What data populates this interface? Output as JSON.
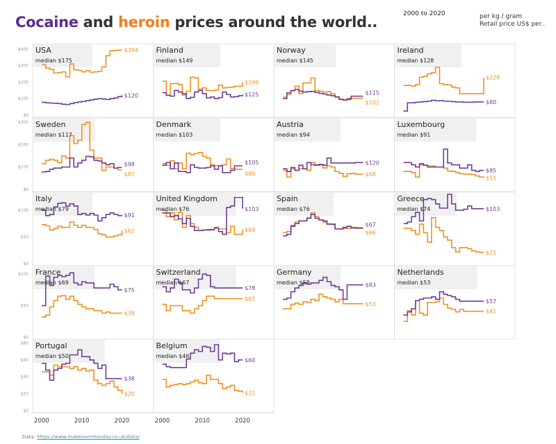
{
  "header": {
    "title_part1": "Cocaine",
    "title_part2": " and ",
    "title_part3": "heroin",
    "title_part4": " prices around the world..",
    "date_range": "2000 to 2020",
    "unit_line1": "per kg / gram",
    "unit_line2": "Retail price US$ per.."
  },
  "footer": {
    "label": "Data: ",
    "link": "https://www.makeovermonday.co.uk/data/"
  },
  "colors": {
    "cocaine": "#6a3d9a",
    "heroin": "#f0901e",
    "panel_header_bg": "#f0f0f0",
    "grid": "#dddddd"
  },
  "chart_data": {
    "type": "line",
    "subtype": "step small multiples",
    "title": "Cocaine and heroin prices around the world..",
    "xlabel": "",
    "ylabel": "Retail price US$",
    "x": [
      2000,
      2001,
      2002,
      2003,
      2004,
      2005,
      2006,
      2007,
      2008,
      2009,
      2010,
      2011,
      2012,
      2013,
      2014,
      2015,
      2016,
      2017,
      2018,
      2019,
      2020
    ],
    "x_ticks": [
      "2000",
      "2010",
      "2020"
    ],
    "legend": [
      {
        "name": "Cocaine",
        "color": "#6a3d9a"
      },
      {
        "name": "Heroin",
        "color": "#f0901e"
      }
    ],
    "rows": [
      {
        "y_ticks": [
          {
            "v": 0,
            "l": "$0"
          },
          {
            "v": 100,
            "l": "$100"
          },
          {
            "v": 200,
            "l": "$200"
          },
          {
            "v": 300,
            "l": "$300"
          },
          {
            "v": 400,
            "l": "$400"
          }
        ],
        "ylim": [
          0,
          420
        ]
      },
      {
        "y_ticks": [
          {
            "v": 0,
            "l": "$0"
          },
          {
            "v": 100,
            "l": "$100"
          },
          {
            "v": 200,
            "l": "$200"
          },
          {
            "v": 300,
            "l": "$300"
          }
        ],
        "ylim": [
          0,
          310
        ]
      },
      {
        "y_ticks": [
          {
            "v": 0,
            "l": "$0"
          },
          {
            "v": 50,
            "l": "$50"
          },
          {
            "v": 100,
            "l": "$100"
          }
        ],
        "ylim": [
          0,
          130
        ]
      },
      {
        "y_ticks": [
          {
            "v": 0,
            "l": "$0"
          },
          {
            "v": 50,
            "l": "$50"
          },
          {
            "v": 100,
            "l": "$100"
          }
        ],
        "ylim": [
          0,
          110
        ]
      },
      {
        "y_ticks": [
          {
            "v": 0,
            "l": "$0"
          },
          {
            "v": 20,
            "l": "$20"
          },
          {
            "v": 40,
            "l": "$40"
          },
          {
            "v": 60,
            "l": "$60"
          },
          {
            "v": 80,
            "l": "$80"
          }
        ],
        "ylim": [
          0,
          82
        ]
      }
    ],
    "panels": [
      {
        "country": "USA",
        "median": "median $175",
        "row": 0,
        "col": 0,
        "cocaine": [
          78,
          75,
          73,
          72,
          70,
          66,
          64,
          70,
          76,
          80,
          83,
          88,
          92,
          97,
          100,
          98,
          95,
          100,
          104,
          112,
          120
        ],
        "cocaine_label": "$120",
        "heroin": [
          305,
          285,
          278,
          255,
          258,
          262,
          232,
          310,
          275,
          272,
          262,
          270,
          260,
          262,
          265,
          292,
          360,
          390,
          392,
          394,
          394
        ],
        "heroin_label": "$394"
      },
      {
        "country": "Finland",
        "median": "median $149",
        "row": 0,
        "col": 1,
        "cocaine": [
          136,
          120,
          115,
          150,
          140,
          130,
          100,
          108,
          140,
          150,
          130,
          104,
          110,
          100,
          106,
          140,
          125,
          110,
          112,
          118,
          125
        ],
        "cocaine_label": "$125",
        "heroin": [
          205,
          120,
          190,
          192,
          185,
          122,
          145,
          230,
          225,
          158,
          165,
          150,
          148,
          152,
          182,
          165,
          168,
          170,
          175,
          175,
          199
        ],
        "heroin_label": "$199"
      },
      {
        "country": "Norway",
        "median": "median $145",
        "row": 0,
        "col": 2,
        "cocaine": [
          100,
          135,
          148,
          155,
          145,
          140,
          142,
          144,
          138,
          132,
          128,
          122,
          118,
          110,
          95,
          92,
          96,
          115,
          115,
          115,
          115
        ],
        "cocaine_label": "$115",
        "heroin": [
          110,
          125,
          150,
          175,
          130,
          195,
          195,
          225,
          150,
          145,
          140,
          142,
          130,
          112,
          98,
          90,
          102,
          102,
          102,
          102,
          102
        ],
        "heroin_label": "$102"
      },
      {
        "country": "Ireland",
        "median": "median $128",
        "row": 0,
        "col": 3,
        "cocaine": [
          25,
          75,
          75,
          78,
          80,
          82,
          85,
          90,
          87,
          88,
          85,
          84,
          82,
          80,
          80,
          78,
          78,
          79,
          80,
          80,
          80
        ],
        "cocaine_label": "$80",
        "heroin": [
          180,
          180,
          176,
          185,
          230,
          235,
          250,
          258,
          290,
          190,
          185,
          183,
          170,
          165,
          130,
          130,
          130,
          130,
          130,
          130,
          228
        ],
        "heroin_label": "$228"
      },
      {
        "country": "Sweden",
        "median": "median $117",
        "row": 1,
        "col": 0,
        "cocaine": [
          78,
          80,
          90,
          95,
          95,
          100,
          100,
          140,
          100,
          118,
          130,
          148,
          145,
          130,
          127,
          118,
          110,
          115,
          95,
          98,
          98
        ],
        "cocaine_label": "$98",
        "heroin": [
          115,
          130,
          135,
          130,
          120,
          150,
          140,
          240,
          205,
          220,
          290,
          300,
          175,
          140,
          140,
          85,
          100,
          100,
          95,
          87,
          87
        ],
        "heroin_label": "$87"
      },
      {
        "country": "Denmark",
        "median": "median $103",
        "row": 1,
        "col": 1,
        "cocaine": [
          108,
          120,
          92,
          118,
          80,
          80,
          75,
          110,
          98,
          95,
          95,
          98,
          105,
          90,
          105,
          75,
          75,
          85,
          105,
          105,
          105
        ],
        "cocaine_label": "$105",
        "heroin": [
          115,
          108,
          128,
          92,
          118,
          92,
          162,
          155,
          160,
          165,
          148,
          140,
          110,
          106,
          106,
          110,
          136,
          92,
          90,
          90,
          90
        ],
        "heroin_label": "$90"
      },
      {
        "country": "Austria",
        "median": "median $94",
        "row": 1,
        "col": 2,
        "cocaine": [
          92,
          80,
          98,
          85,
          108,
          92,
          120,
          110,
          108,
          112,
          108,
          140,
          118,
          118,
          118,
          118,
          118,
          118,
          120,
          120,
          120
        ],
        "cocaine_label": "$120",
        "heroin": [
          85,
          55,
          92,
          85,
          92,
          92,
          85,
          120,
          110,
          108,
          96,
          105,
          100,
          80,
          72,
          58,
          70,
          72,
          68,
          68,
          68
        ],
        "heroin_label": "$68"
      },
      {
        "country": "Luxembourg",
        "median": "median $91",
        "row": 1,
        "col": 3,
        "cocaine": [
          120,
          120,
          110,
          100,
          115,
          108,
          100,
          100,
          100,
          100,
          180,
          118,
          110,
          110,
          95,
          95,
          110,
          85,
          80,
          85,
          85
        ],
        "cocaine_label": "$85",
        "heroin": [
          80,
          80,
          75,
          55,
          110,
          108,
          105,
          105,
          100,
          100,
          95,
          82,
          80,
          75,
          70,
          68,
          68,
          66,
          60,
          55,
          51
        ],
        "heroin_label": "$51"
      },
      {
        "country": "Italy",
        "median": "median $79",
        "row": 2,
        "col": 0,
        "cocaine": [
          100,
          90,
          92,
          106,
          113,
          114,
          108,
          112,
          108,
          92,
          94,
          91,
          94,
          91,
          80,
          86,
          92,
          95,
          92,
          90,
          91
        ],
        "cocaine_label": "$91",
        "heroin": [
          73,
          71,
          63,
          66,
          70,
          68,
          68,
          78,
          72,
          68,
          72,
          68,
          68,
          64,
          56,
          54,
          50,
          50,
          52,
          54,
          62
        ],
        "heroin_label": "$62"
      },
      {
        "country": "United Kingdom",
        "median": "median $76",
        "row": 2,
        "col": 1,
        "cocaine": [
          95,
          95,
          88,
          90,
          84,
          75,
          85,
          70,
          62,
          62,
          63,
          63,
          64,
          67,
          60,
          55,
          105,
          108,
          124,
          124,
          103
        ],
        "cocaine_label": "$103",
        "heroin": [
          100,
          88,
          95,
          82,
          96,
          68,
          90,
          75,
          68,
          62,
          63,
          64,
          63,
          68,
          65,
          65,
          58,
          70,
          55,
          55,
          64
        ],
        "heroin_label": "$64"
      },
      {
        "country": "Spain",
        "median": "median $76",
        "row": 2,
        "col": 2,
        "cocaine": [
          52,
          55,
          70,
          75,
          80,
          80,
          85,
          92,
          85,
          82,
          80,
          74,
          74,
          65,
          65,
          68,
          70,
          67,
          67,
          67,
          67
        ],
        "cocaine_label": "$67",
        "heroin": [
          58,
          60,
          72,
          78,
          80,
          80,
          86,
          95,
          88,
          82,
          78,
          74,
          73,
          65,
          65,
          66,
          66,
          68,
          66,
          66,
          66
        ],
        "heroin_label": "$66"
      },
      {
        "country": "Greece",
        "median": "median $74",
        "row": 2,
        "col": 3,
        "cocaine": [
          75,
          78,
          88,
          96,
          80,
          120,
          122,
          120,
          112,
          104,
          104,
          130,
          112,
          100,
          100,
          102,
          108,
          103,
          103,
          103,
          103
        ],
        "cocaine_label": "$103",
        "heroin": [
          66,
          66,
          62,
          55,
          74,
          58,
          40,
          86,
          68,
          62,
          50,
          44,
          30,
          22,
          30,
          30,
          28,
          24,
          22,
          21,
          21
        ],
        "heroin_label": "$21"
      },
      {
        "country": "France",
        "median": "median $69",
        "row": 3,
        "col": 0,
        "cocaine": [
          50,
          97,
          82,
          95,
          98,
          96,
          98,
          102,
          86,
          83,
          88,
          86,
          86,
          78,
          78,
          78,
          78,
          84,
          80,
          75,
          75
        ],
        "cocaine_label": "$75",
        "heroin": [
          32,
          35,
          48,
          58,
          65,
          66,
          60,
          65,
          58,
          52,
          48,
          45,
          45,
          42,
          42,
          38,
          40,
          38,
          38,
          38,
          38
        ],
        "heroin_label": "$38"
      },
      {
        "country": "Switzerland",
        "median": "median $67",
        "row": 3,
        "col": 1,
        "cocaine": [
          80,
          72,
          78,
          92,
          86,
          75,
          75,
          70,
          78,
          92,
          100,
          98,
          80,
          78,
          78,
          78,
          78,
          78,
          78,
          78,
          78
        ],
        "cocaine_label": "$78",
        "heroin": [
          52,
          42,
          50,
          50,
          50,
          42,
          42,
          38,
          45,
          50,
          58,
          65,
          65,
          61,
          61,
          61,
          61,
          61,
          61,
          61,
          61
        ],
        "heroin_label": "$61"
      },
      {
        "country": "Germany",
        "median": "median $58",
        "row": 3,
        "col": 2,
        "cocaine": [
          60,
          62,
          72,
          78,
          82,
          86,
          84,
          86,
          86,
          90,
          95,
          88,
          82,
          80,
          75,
          60,
          83,
          83,
          83,
          83,
          83
        ],
        "cocaine_label": "$83",
        "heroin": [
          45,
          45,
          52,
          54,
          52,
          56,
          55,
          60,
          58,
          68,
          64,
          62,
          60,
          56,
          60,
          53,
          53,
          53,
          53,
          53,
          53
        ],
        "heroin_label": "$53"
      },
      {
        "country": "Netherlands",
        "median": "median $53",
        "row": 3,
        "col": 3,
        "cocaine": [
          35,
          40,
          45,
          58,
          60,
          62,
          62,
          64,
          60,
          72,
          68,
          66,
          64,
          60,
          57,
          57,
          57,
          57,
          57,
          57,
          57
        ],
        "cocaine_label": "$57",
        "heroin": [
          25,
          42,
          35,
          58,
          38,
          35,
          55,
          55,
          56,
          62,
          52,
          46,
          44,
          40,
          44,
          41,
          41,
          41,
          41,
          41,
          41
        ],
        "heroin_label": "$41"
      },
      {
        "country": "Portugal",
        "median": "median $50",
        "row": 4,
        "col": 0,
        "cocaine": [
          56,
          48,
          36,
          48,
          50,
          55,
          56,
          66,
          66,
          72,
          64,
          64,
          60,
          56,
          50,
          54,
          38,
          38,
          38,
          38,
          38
        ],
        "cocaine_label": "$38",
        "heroin": [
          46,
          46,
          42,
          54,
          52,
          52,
          52,
          50,
          52,
          48,
          50,
          47,
          48,
          36,
          32,
          30,
          32,
          35,
          28,
          24,
          20
        ],
        "heroin_label": "$20"
      },
      {
        "country": "Belgium",
        "median": "median $46",
        "row": 4,
        "col": 1,
        "cocaine": [
          55,
          52,
          51,
          51,
          51,
          51,
          61,
          68,
          72,
          70,
          76,
          75,
          70,
          78,
          60,
          68,
          67,
          68,
          58,
          60,
          60
        ],
        "cocaine_label": "$60",
        "heroin": [
          37,
          28,
          30,
          31,
          32,
          31,
          32,
          34,
          36,
          33,
          32,
          42,
          37,
          37,
          32,
          26,
          28,
          30,
          24,
          23,
          21
        ],
        "heroin_label": "$21"
      }
    ]
  }
}
